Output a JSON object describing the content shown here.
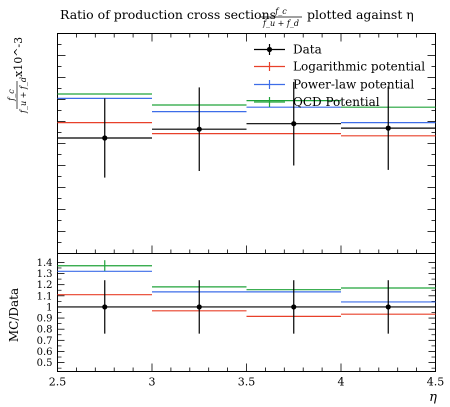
{
  "chart_data": [
    {
      "type": "line",
      "panel": "main",
      "title_text": "Ratio of production cross sections",
      "title_fraction_num": "f_c",
      "title_fraction_den": "f_u + f_d",
      "title_suffix": "plotted against η",
      "ylabel_num": "f_c",
      "ylabel_den": "f_u + f_d",
      "ylabel_suffix": "x10^-3",
      "xlim": [
        2.5,
        4.5
      ],
      "ylim": [
        0,
        10
      ],
      "bins": [
        [
          2.5,
          3.0
        ],
        [
          3.0,
          3.5
        ],
        [
          3.5,
          4.0
        ],
        [
          4.0,
          4.5
        ]
      ],
      "legend_position": "top-right",
      "series": [
        {
          "name": "Data",
          "color": "#000000",
          "marker": "point",
          "values": [
            5.25,
            5.65,
            5.9,
            5.7
          ],
          "err_lo": [
            1.8,
            1.9,
            1.9,
            1.9
          ],
          "err_hi": [
            1.8,
            1.9,
            1.9,
            1.9
          ]
        },
        {
          "name": "Logarithmic potential",
          "color": "#e8402a",
          "marker": "none",
          "values": [
            5.95,
            5.45,
            5.45,
            5.35
          ]
        },
        {
          "name": "Power-law potential",
          "color": "#3d6de8",
          "marker": "none",
          "values": [
            7.05,
            6.45,
            6.65,
            5.95
          ]
        },
        {
          "name": "QCD Potential",
          "color": "#20a33a",
          "marker": "none",
          "values": [
            7.25,
            6.75,
            6.95,
            6.65
          ]
        }
      ]
    },
    {
      "type": "line",
      "panel": "ratio",
      "ylabel": "MC/Data",
      "xlabel": "η",
      "xlim": [
        2.5,
        4.5
      ],
      "ylim": [
        0.42,
        1.48
      ],
      "x_ticks": [
        "2.5",
        "3",
        "3.5",
        "4",
        "4.5"
      ],
      "x_tick_values": [
        2.5,
        3.0,
        3.5,
        4.0,
        4.5
      ],
      "y_ticks": [
        "0.5",
        "0.6",
        "0.7",
        "0.8",
        "0.9",
        "1",
        "1.1",
        "1.2",
        "1.3",
        "1.4"
      ],
      "y_tick_values": [
        0.5,
        0.6,
        0.7,
        0.8,
        0.9,
        1.0,
        1.1,
        1.2,
        1.3,
        1.4
      ],
      "bins": [
        [
          2.5,
          3.0
        ],
        [
          3.0,
          3.5
        ],
        [
          3.5,
          4.0
        ],
        [
          4.0,
          4.5
        ]
      ],
      "series": [
        {
          "name": "Data",
          "color": "#000000",
          "marker": "point",
          "values": [
            1.0,
            1.0,
            1.0,
            1.0
          ],
          "err_lo": [
            0.24,
            0.24,
            0.24,
            0.24
          ],
          "err_hi": [
            0.24,
            0.24,
            0.24,
            0.24
          ]
        },
        {
          "name": "Logarithmic potential",
          "color": "#e8402a",
          "marker": "none",
          "values": [
            1.11,
            0.965,
            0.915,
            0.935
          ]
        },
        {
          "name": "Power-law potential",
          "color": "#3d6de8",
          "marker": "none",
          "values": [
            1.32,
            1.135,
            1.135,
            1.045
          ]
        },
        {
          "name": "QCD Potential",
          "color": "#20a33a",
          "marker": "none",
          "values": [
            1.37,
            1.18,
            1.155,
            1.17
          ],
          "err_lo": [
            0.05,
            0.0,
            0.0,
            0.0
          ],
          "err_hi": [
            0.05,
            0.0,
            0.0,
            0.0
          ]
        }
      ]
    }
  ]
}
